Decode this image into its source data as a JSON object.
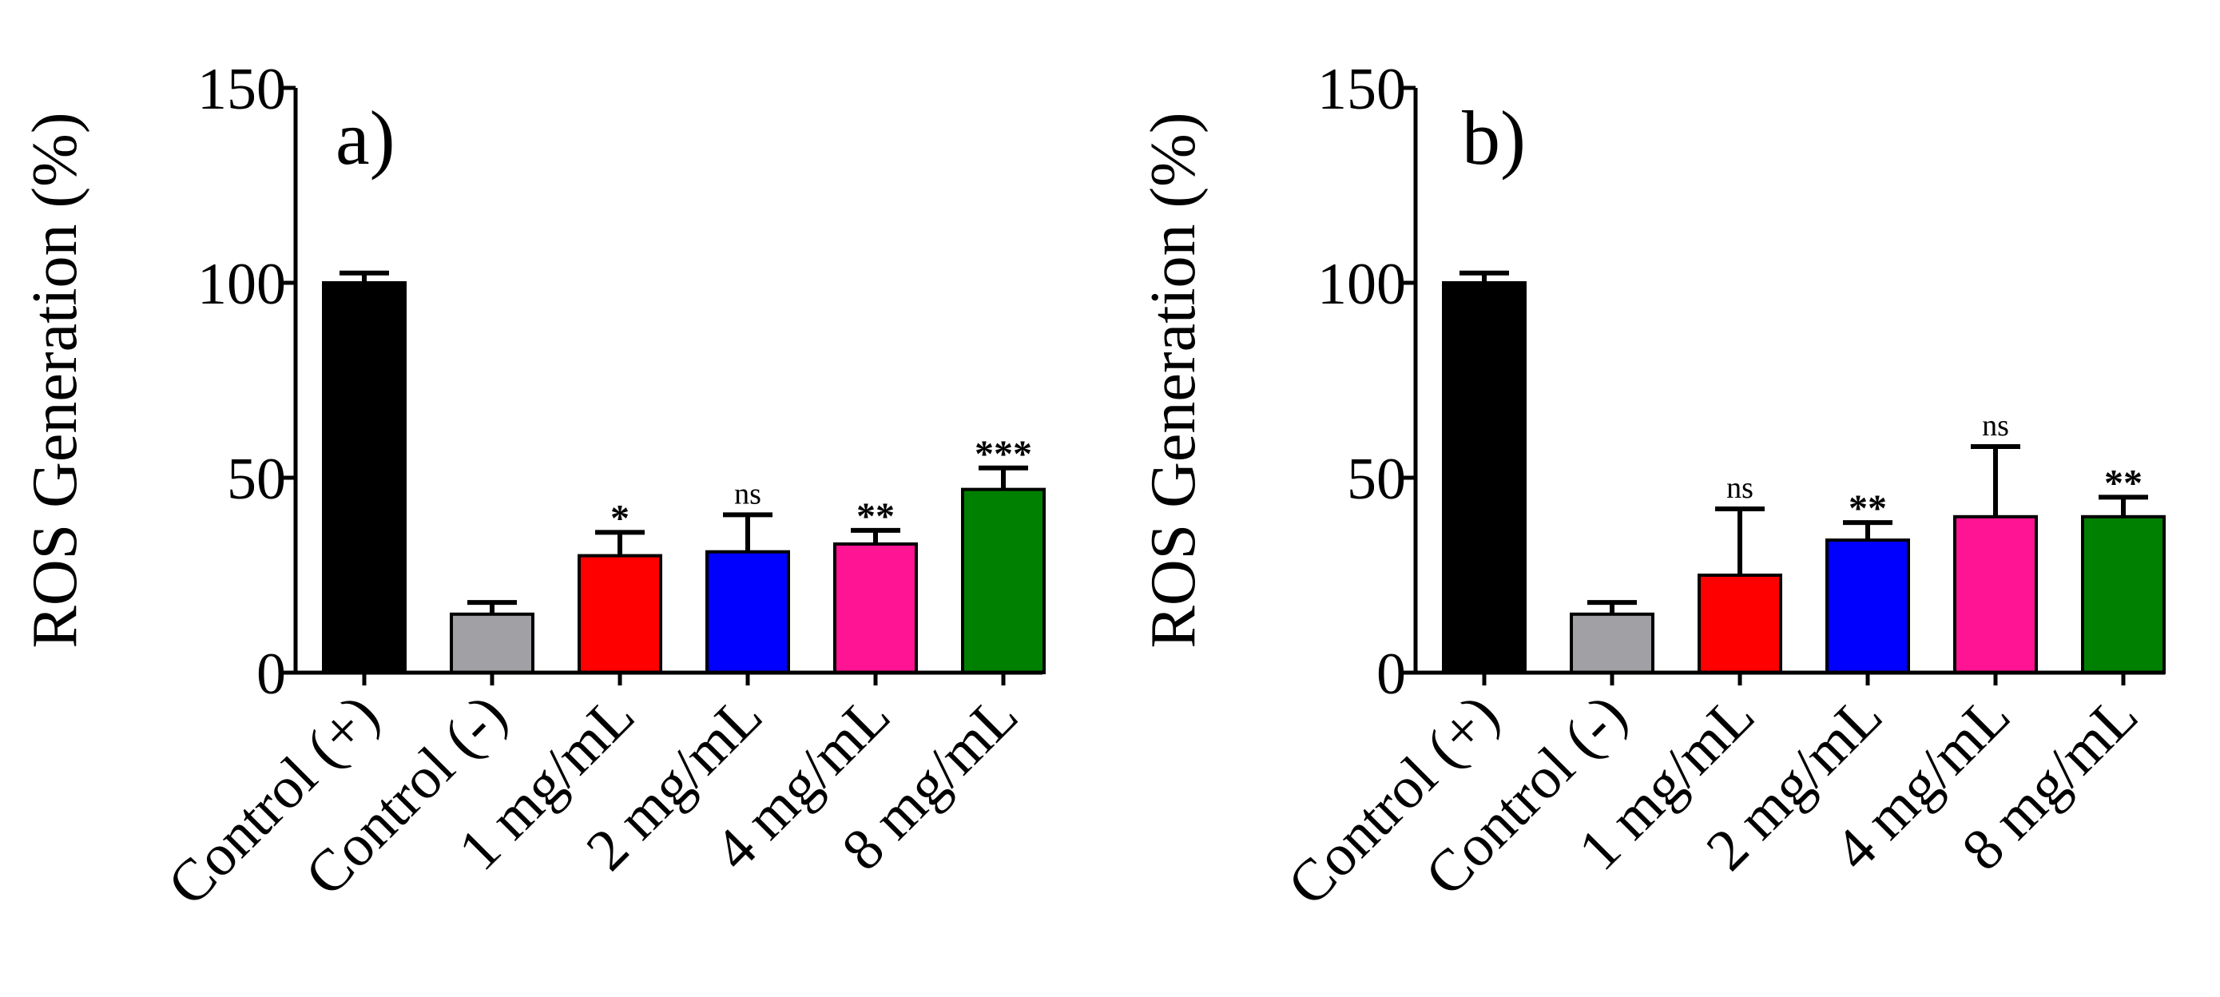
{
  "colors": {
    "control_pos": "#000000",
    "control_neg": "#a0a0a5",
    "dose_1": "#ff0000",
    "dose_2": "#0000ff",
    "dose_4": "#ff1493",
    "dose_8": "#008000"
  },
  "chart_data": [
    {
      "type": "bar",
      "panel_label": "a)",
      "ylabel": "ROS Generation (%)",
      "xlabel": "",
      "ylim": [
        0,
        150
      ],
      "yticks": [
        0,
        50,
        100,
        150
      ],
      "categories": [
        "Control (+)",
        "Control (-)",
        "1 mg/mL",
        "2 mg/mL",
        "4 mg/mL",
        "8 mg/mL"
      ],
      "values": [
        100,
        15,
        30,
        31,
        33,
        47
      ],
      "errors": [
        2.5,
        3,
        6,
        9.5,
        3.5,
        5.5
      ],
      "significance": [
        "",
        "",
        "*",
        "ns",
        "**",
        "***"
      ],
      "colors": [
        "#000000",
        "#a0a0a5",
        "#ff0000",
        "#0000ff",
        "#ff1493",
        "#008000"
      ]
    },
    {
      "type": "bar",
      "panel_label": "b)",
      "ylabel": "ROS Generation (%)",
      "xlabel": "",
      "ylim": [
        0,
        150
      ],
      "yticks": [
        0,
        50,
        100,
        150
      ],
      "categories": [
        "Control (+)",
        "Control (-)",
        "1 mg/mL",
        "2 mg/mL",
        "4 mg/mL",
        "8 mg/mL"
      ],
      "values": [
        100,
        15,
        25,
        34,
        40,
        40
      ],
      "errors": [
        2.5,
        3,
        17,
        4.5,
        18,
        5
      ],
      "significance": [
        "",
        "",
        "ns",
        "**",
        "ns",
        "**"
      ],
      "colors": [
        "#000000",
        "#a0a0a5",
        "#ff0000",
        "#0000ff",
        "#ff1493",
        "#008000"
      ]
    }
  ]
}
